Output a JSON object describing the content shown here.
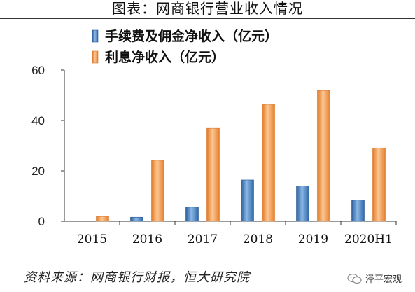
{
  "header": {
    "title": "图表：网商银行营业收入情况"
  },
  "chart_data": {
    "type": "bar",
    "categories": [
      "2015",
      "2016",
      "2017",
      "2018",
      "2019",
      "2020H1"
    ],
    "series": [
      {
        "name": "手续费及佣金净收入（亿元）",
        "color": "#4f88c6",
        "values": [
          0,
          1.6,
          5.6,
          16.4,
          14.0,
          8.4
        ]
      },
      {
        "name": "利息净收入（亿元）",
        "color": "#f19b4a",
        "values": [
          1.9,
          24.2,
          36.9,
          46.4,
          51.9,
          29.1
        ]
      }
    ],
    "ylim": [
      0,
      60
    ],
    "yticks": [
      0,
      20,
      40,
      60
    ],
    "ytick_labels": [
      "0",
      "20",
      "40",
      "60"
    ],
    "grid": false,
    "legend_position": "top"
  },
  "footer": {
    "source": "资料来源：网商银行财报，恒大研究院",
    "watermark": "泽平宏观",
    "watermark_icon": "wechat-icon"
  }
}
